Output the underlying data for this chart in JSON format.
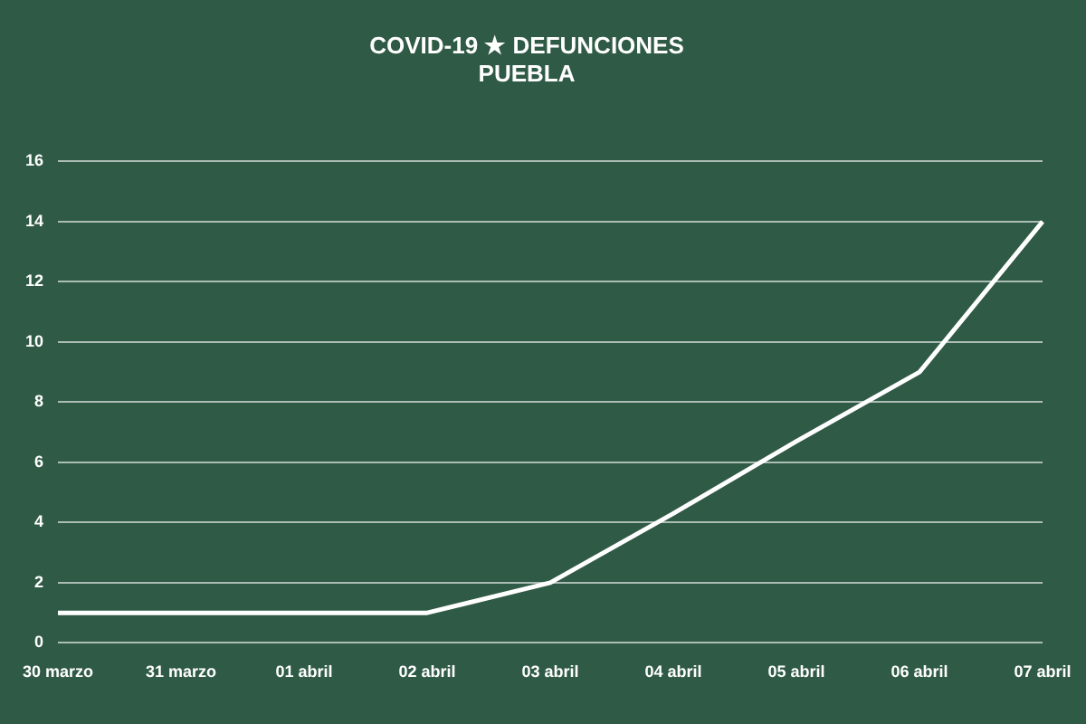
{
  "chart_data": {
    "type": "line",
    "title": "COVID-19 ★ DEFUNCIONES\nPUEBLA",
    "categories": [
      "30 marzo",
      "31 marzo",
      "01 abril",
      "02 abril",
      "03 abril",
      "04 abril",
      "05 abril",
      "06 abril",
      "07 abril"
    ],
    "series": [
      {
        "color": "#ffffff",
        "values": [
          1,
          1,
          1,
          1,
          2,
          4.3,
          6.7,
          9,
          14
        ]
      }
    ],
    "ylim": [
      0,
      16
    ],
    "yticks": [
      0,
      2,
      4,
      6,
      8,
      10,
      12,
      14,
      16
    ],
    "grid": "y",
    "legend": false,
    "marker": "none",
    "line_style": "solid"
  }
}
